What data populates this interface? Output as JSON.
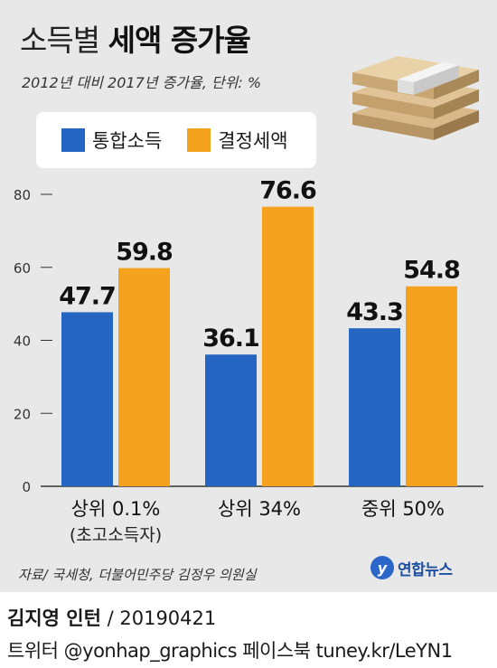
{
  "title_light": "소득별",
  "title_bold": "세액 증가율",
  "subtitle": "2012년 대비 2017년 증가율, 단위: %",
  "legend": [
    {
      "label": "통합소득",
      "color": "#2566c2"
    },
    {
      "label": "결정세액",
      "color": "#f5a21e"
    }
  ],
  "chart_data": {
    "type": "bar",
    "categories": [
      "상위 0.1%",
      "상위 34%",
      "중위 50%"
    ],
    "category_notes": [
      "(초고소득자)",
      "",
      ""
    ],
    "series": [
      {
        "name": "통합소득",
        "values": [
          47.7,
          36.1,
          43.3
        ],
        "color": "#2566c2"
      },
      {
        "name": "결정세액",
        "values": [
          59.8,
          76.6,
          54.8
        ],
        "color": "#f5a21e"
      }
    ],
    "yticks": [
      0,
      20,
      40,
      60,
      80
    ],
    "ylim": [
      0,
      80
    ]
  },
  "source": "자료/ 국세청, 더불어민주당 김정우 의원실",
  "logo_mark": "y",
  "logo_text": "연합뉴스",
  "footer": {
    "author": "김지영 인턴",
    "date": "/ 20190421",
    "social": "트위터 @yonhap_graphics  페이스북 tuney.kr/LeYN1"
  }
}
